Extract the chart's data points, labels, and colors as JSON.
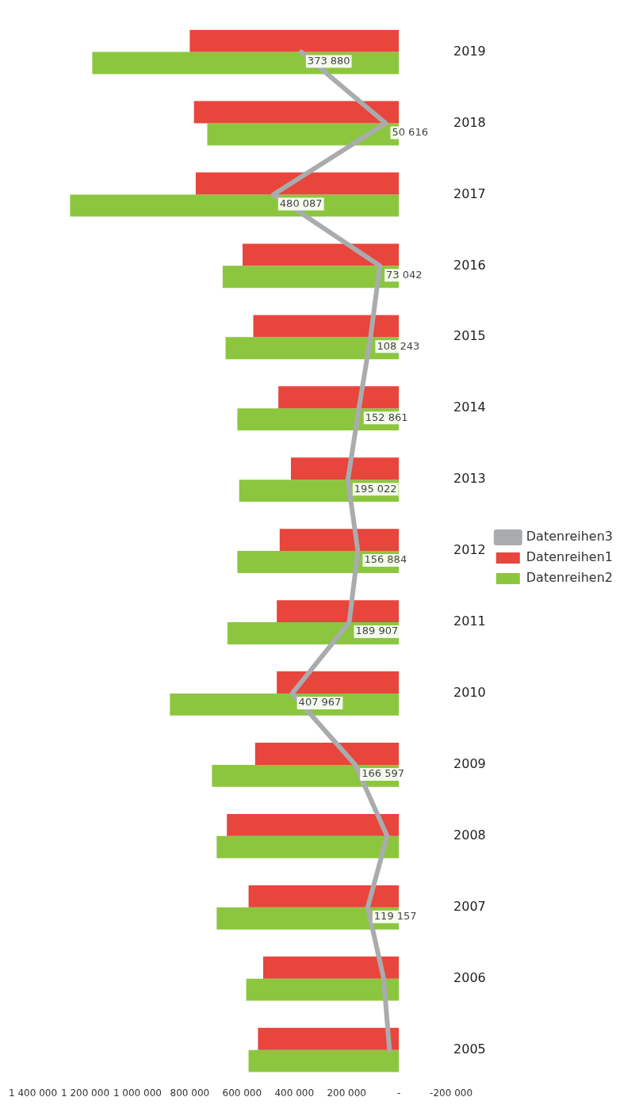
{
  "chart_data": {
    "type": "bar",
    "orientation": "horizontal",
    "categories": [
      "2019",
      "2018",
      "2017",
      "2016",
      "2015",
      "2014",
      "2013",
      "2012",
      "2011",
      "2010",
      "2009",
      "2008",
      "2007",
      "2006",
      "2005"
    ],
    "series": [
      {
        "name": "Datenreihen1",
        "color": "#e8453c",
        "values": [
          800000,
          784000,
          777000,
          598000,
          557000,
          461000,
          413000,
          456000,
          467000,
          467000,
          550000,
          658000,
          575000,
          519000,
          539000
        ]
      },
      {
        "name": "Datenreihen2",
        "color": "#8cc63f",
        "values": [
          1173000,
          733000,
          1258000,
          674000,
          663000,
          618000,
          611000,
          618000,
          656000,
          876000,
          715000,
          697000,
          697000,
          584000,
          575000
        ]
      },
      {
        "name": "Datenreihen3",
        "type": "line",
        "color": "#a9acae",
        "values": [
          373880,
          50616,
          480087,
          73042,
          108243,
          152861,
          195022,
          156884,
          189907,
          407967,
          166597,
          45000,
          119157,
          58000,
          36000
        ],
        "value_labels": [
          "373 880",
          "50 616",
          "480 087",
          "73 042",
          "108 243",
          "152 861",
          "195 022",
          "156 884",
          "189 907",
          "407 967",
          "166 597",
          null,
          "119 157",
          null,
          null
        ]
      }
    ],
    "xlim": [
      1400000,
      -200000
    ],
    "xticks": [
      {
        "value": 1400000,
        "label": "1 400 000"
      },
      {
        "value": 1200000,
        "label": "1 200 000"
      },
      {
        "value": 1000000,
        "label": "1 000 000"
      },
      {
        "value": 800000,
        "label": "800 000"
      },
      {
        "value": 600000,
        "label": "600 000"
      },
      {
        "value": 400000,
        "label": "400 000"
      },
      {
        "value": 200000,
        "label": "200 000"
      },
      {
        "value": 0,
        "label": "-"
      },
      {
        "value": -200000,
        "label": "-200 000"
      }
    ],
    "grid": false,
    "legend": "right",
    "marker": "none",
    "line_style": "solid"
  }
}
